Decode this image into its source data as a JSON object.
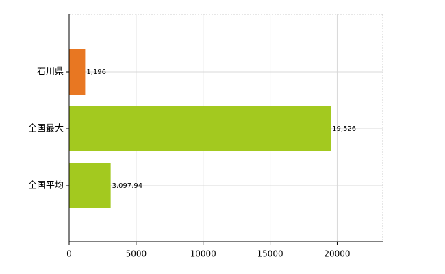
{
  "chart_data": {
    "type": "hbar",
    "categories": [
      "石川県",
      "全国最大",
      "全国平均"
    ],
    "values": [
      1196,
      19526,
      3097.94
    ],
    "value_labels": [
      "1,196",
      "19,526",
      "3,097.94"
    ],
    "colors": [
      "#e87722",
      "#a3c91f",
      "#a3c91f"
    ],
    "xlim": [
      0,
      23400
    ],
    "xticks": [
      0,
      5000,
      10000,
      15000,
      20000
    ],
    "grid": true
  }
}
